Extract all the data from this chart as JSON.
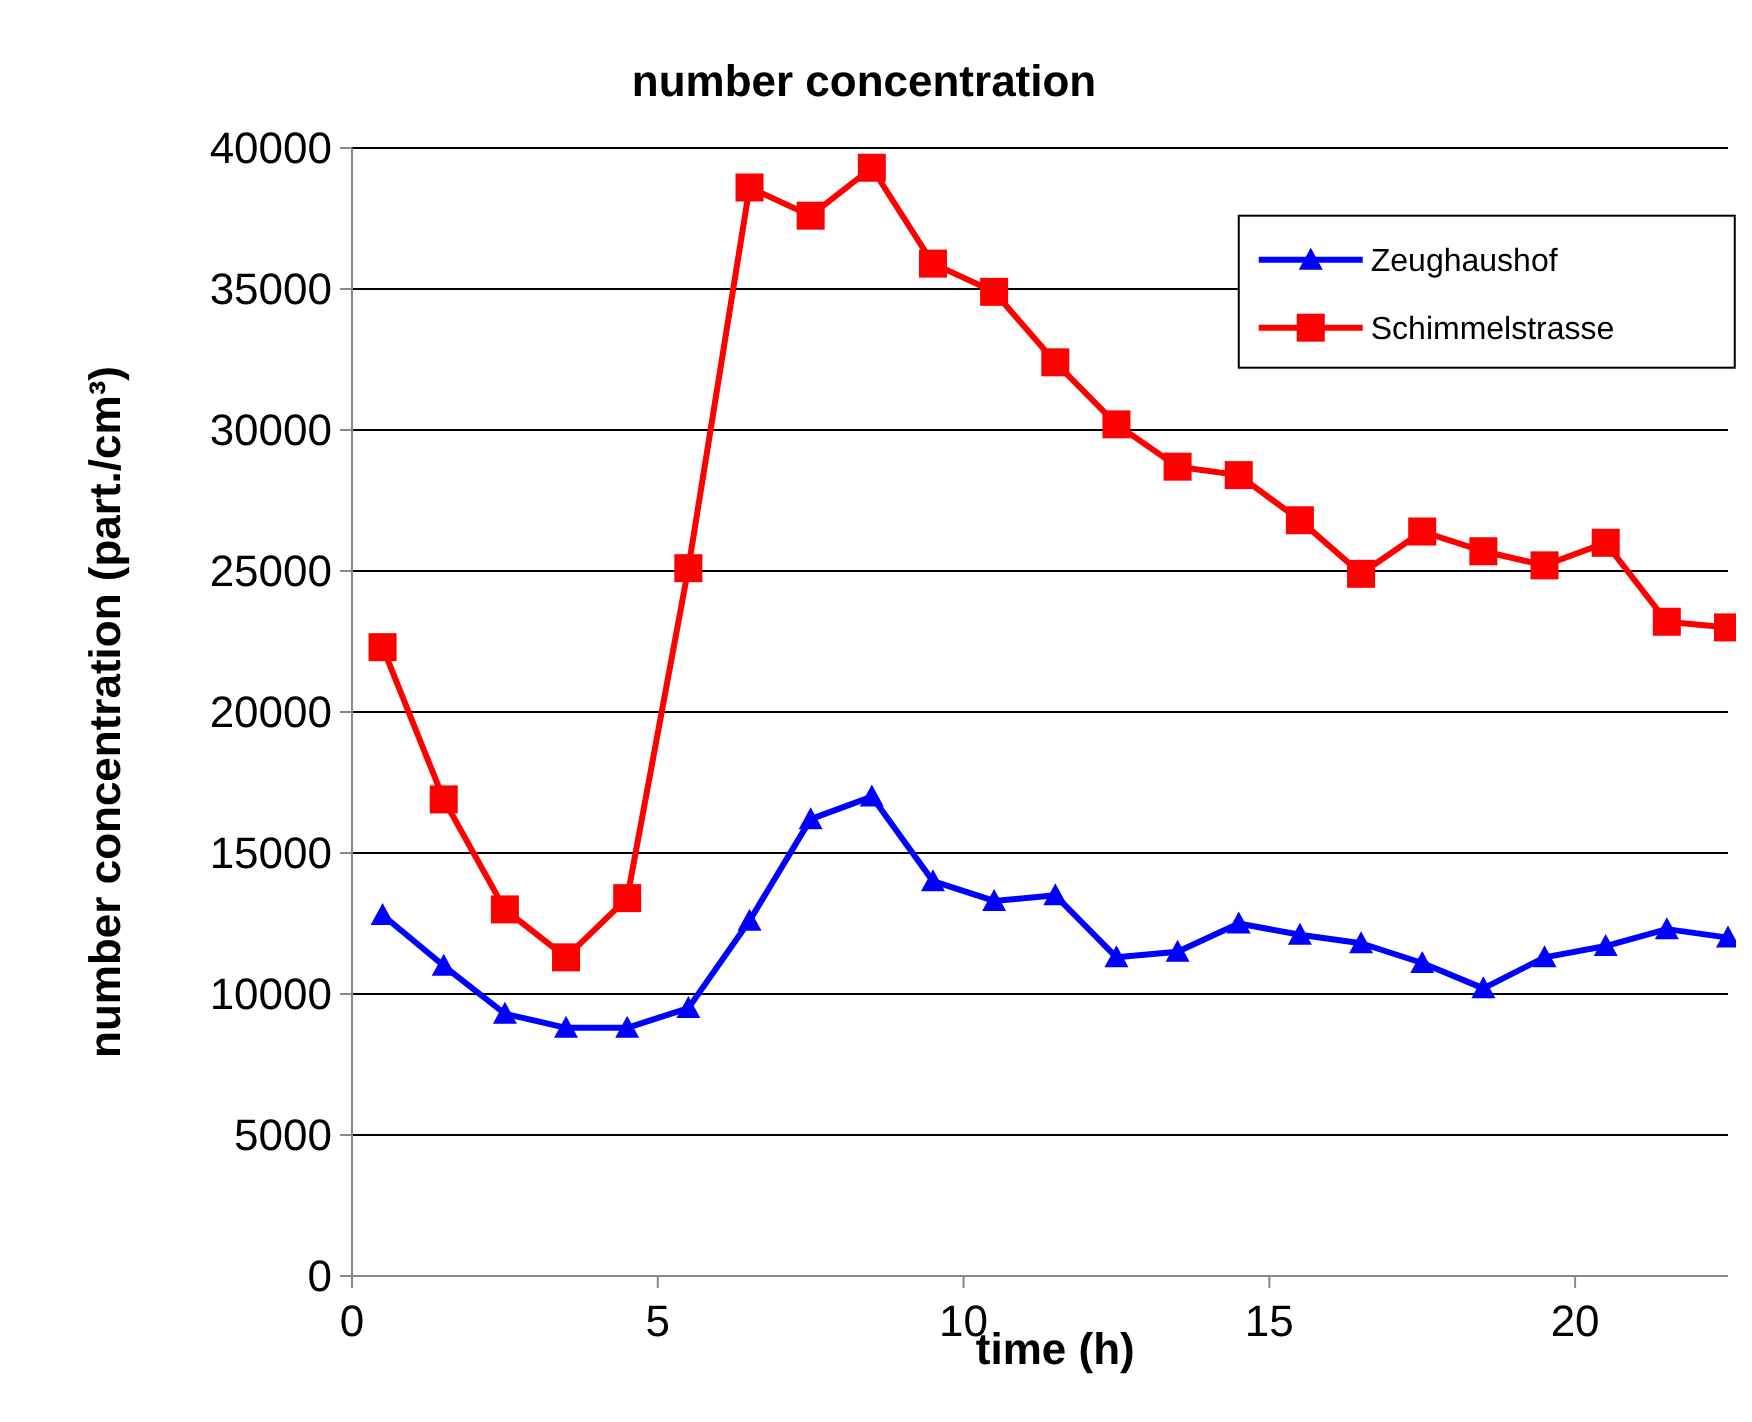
{
  "chart_data": {
    "type": "line",
    "title": "number concentration",
    "xlabel": "time (h)",
    "ylabel": "number concentration (part./cm³)",
    "xlim": [
      0,
      22.5
    ],
    "xticks": [
      0,
      5,
      10,
      15,
      20
    ],
    "ylim": [
      0,
      40000
    ],
    "yticks": [
      0,
      5000,
      10000,
      15000,
      20000,
      25000,
      30000,
      35000,
      40000
    ],
    "x": [
      0.5,
      1.5,
      2.5,
      3.5,
      4.5,
      5.5,
      6.5,
      7.5,
      8.5,
      9.5,
      10.5,
      11.5,
      12.5,
      13.5,
      14.5,
      15.5,
      16.5,
      17.5,
      18.5,
      19.5,
      20.5,
      21.5,
      22.5
    ],
    "grid": "y",
    "legend": "top right",
    "line_style": "solid",
    "series": [
      {
        "name": "Zeughaushof",
        "color": "#0000ff",
        "marker": "triangle",
        "values": [
          12800,
          11000,
          9300,
          8800,
          8800,
          9500,
          12600,
          16200,
          17000,
          14000,
          13300,
          13500,
          11300,
          11500,
          12500,
          12100,
          11800,
          11100,
          10200,
          11300,
          11700,
          12300,
          12000
        ]
      },
      {
        "name": "Schimmelstrasse",
        "color": "#ff0000",
        "marker": "square",
        "values": [
          22300,
          16900,
          13000,
          11300,
          13400,
          25100,
          38600,
          37600,
          39300,
          35900,
          34900,
          32400,
          30200,
          28700,
          28400,
          26800,
          24900,
          26400,
          25700,
          25200,
          26000,
          23200,
          23000
        ]
      }
    ]
  }
}
